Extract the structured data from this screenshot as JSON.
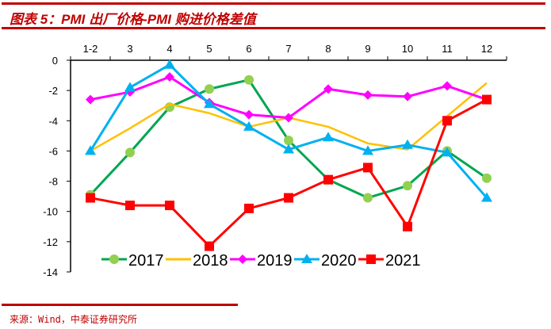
{
  "header": {
    "title": "图表 5：PMI 出厂价格-PMI 购进价格差值"
  },
  "footer": {
    "source": "来源：Wind，中泰证券研究所"
  },
  "chart_data": {
    "type": "line",
    "title": "PMI 出厂价格-PMI 购进价格差值",
    "xlabel": "",
    "ylabel": "",
    "categories": [
      "1-2",
      "3",
      "4",
      "5",
      "6",
      "7",
      "8",
      "9",
      "10",
      "11",
      "12"
    ],
    "ylim": [
      -14,
      0
    ],
    "yticks": [
      0,
      -2,
      -4,
      -6,
      -8,
      -10,
      -12,
      -14
    ],
    "x_axis_position": "top",
    "grid": false,
    "legend_position": "bottom-inside",
    "series": [
      {
        "name": "2017",
        "color": "#00a651",
        "marker": "circle",
        "marker_color": "#92d050",
        "values": [
          -8.9,
          -6.1,
          -3.1,
          -1.9,
          -1.3,
          -5.3,
          -7.9,
          -9.1,
          -8.3,
          -6.0,
          -7.8
        ]
      },
      {
        "name": "2018",
        "color": "#ffc000",
        "marker": "none",
        "values": [
          -6.0,
          -4.5,
          -2.9,
          -3.5,
          -4.4,
          -3.8,
          -4.4,
          -5.5,
          -5.9,
          -3.7,
          -1.5
        ]
      },
      {
        "name": "2019",
        "color": "#ff00ff",
        "marker": "diamond",
        "values": [
          -2.6,
          -2.1,
          -1.1,
          -2.8,
          -3.6,
          -3.8,
          -1.9,
          -2.3,
          -2.4,
          -1.7,
          -2.6
        ]
      },
      {
        "name": "2020",
        "color": "#00b0f0",
        "marker": "triangle",
        "values": [
          -6.0,
          -1.8,
          -0.3,
          -2.9,
          -4.4,
          -5.9,
          -5.1,
          -6.0,
          -5.6,
          -6.1,
          -9.1
        ]
      },
      {
        "name": "2021",
        "color": "#ff0000",
        "marker": "square",
        "values": [
          -9.1,
          -9.6,
          -9.6,
          -12.3,
          -9.8,
          -9.1,
          -7.9,
          -7.1,
          -11.0,
          -4.0,
          -2.6
        ]
      }
    ]
  }
}
